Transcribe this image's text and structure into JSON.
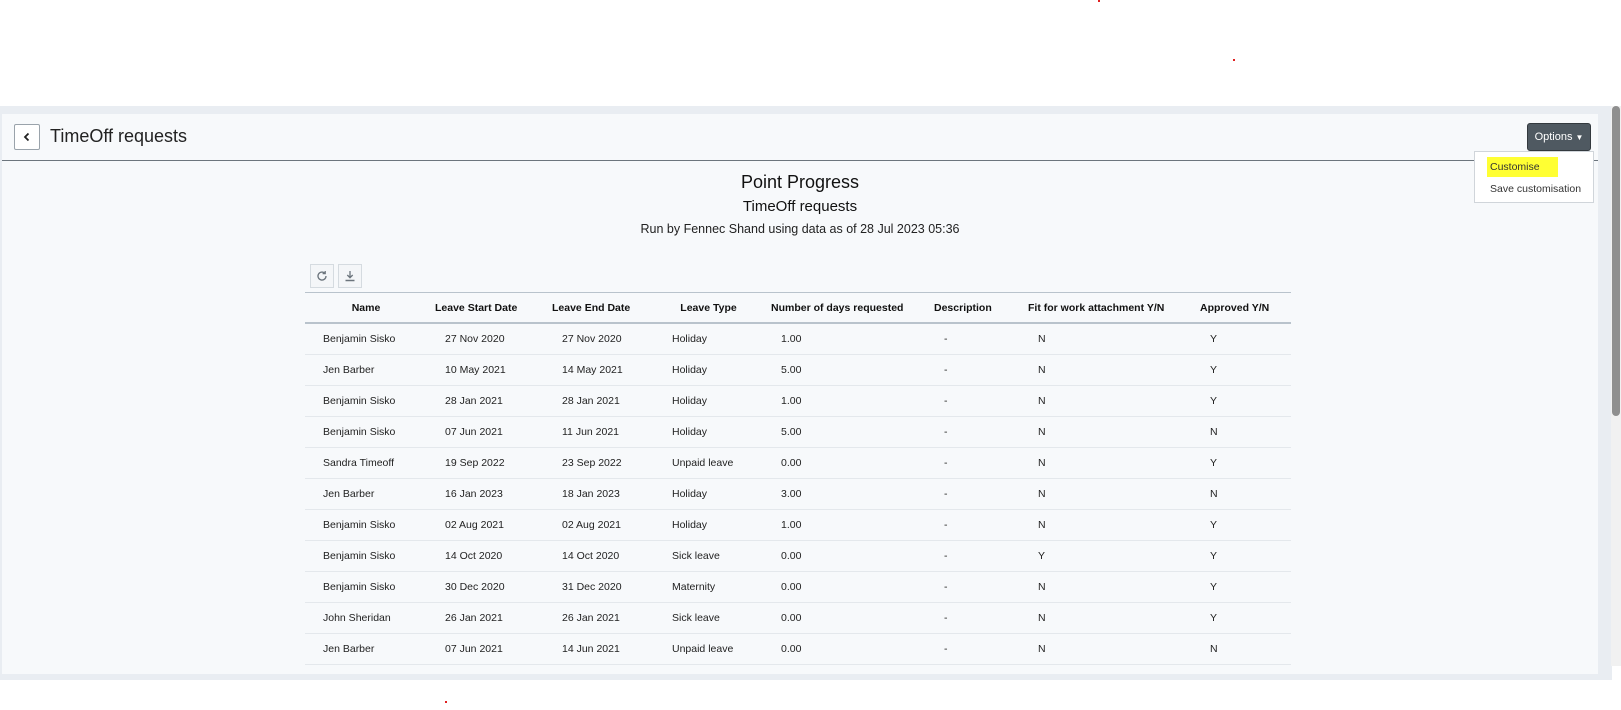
{
  "header": {
    "title": "TimeOff requests",
    "options_label": "Options"
  },
  "options_menu": {
    "items": [
      "Customise",
      "Save customisation"
    ]
  },
  "report": {
    "organization": "Point Progress",
    "title": "TimeOff requests",
    "run_by": "Run by Fennec Shand using data as of 28 Jul 2023 05:36"
  },
  "table": {
    "columns": [
      "Name",
      "Leave Start Date",
      "Leave End Date",
      "Leave Type",
      "Number of days requested",
      "Description",
      "Fit for work attachment Y/N",
      "Approved Y/N"
    ],
    "rows": [
      [
        "Benjamin Sisko",
        "27 Nov 2020",
        "27 Nov 2020",
        "Holiday",
        "1.00",
        "-",
        "N",
        "Y"
      ],
      [
        "Jen Barber",
        "10 May 2021",
        "14 May 2021",
        "Holiday",
        "5.00",
        "-",
        "N",
        "Y"
      ],
      [
        "Benjamin Sisko",
        "28 Jan 2021",
        "28 Jan 2021",
        "Holiday",
        "1.00",
        "-",
        "N",
        "Y"
      ],
      [
        "Benjamin Sisko",
        "07 Jun 2021",
        "11 Jun 2021",
        "Holiday",
        "5.00",
        "-",
        "N",
        "N"
      ],
      [
        "Sandra Timeoff",
        "19 Sep 2022",
        "23 Sep 2022",
        "Unpaid leave",
        "0.00",
        "-",
        "N",
        "Y"
      ],
      [
        "Jen Barber",
        "16 Jan 2023",
        "18 Jan 2023",
        "Holiday",
        "3.00",
        "-",
        "N",
        "N"
      ],
      [
        "Benjamin Sisko",
        "02 Aug 2021",
        "02 Aug 2021",
        "Holiday",
        "1.00",
        "-",
        "N",
        "Y"
      ],
      [
        "Benjamin Sisko",
        "14 Oct 2020",
        "14 Oct 2020",
        "Sick leave",
        "0.00",
        "-",
        "Y",
        "Y"
      ],
      [
        "Benjamin Sisko",
        "30 Dec 2020",
        "31 Dec 2020",
        "Maternity",
        "0.00",
        "-",
        "N",
        "Y"
      ],
      [
        "John Sheridan",
        "26 Jan 2021",
        "26 Jan 2021",
        "Sick leave",
        "0.00",
        "-",
        "N",
        "Y"
      ],
      [
        "Jen Barber",
        "07 Jun 2021",
        "14 Jun 2021",
        "Unpaid leave",
        "0.00",
        "-",
        "N",
        "N"
      ]
    ]
  },
  "icons": {
    "back": "chevron-left-icon",
    "refresh": "refresh-icon",
    "download": "download-icon"
  },
  "colors": {
    "options_button": "#4f5961",
    "highlight": "#ffff33",
    "header_rule": "#6c757d"
  }
}
